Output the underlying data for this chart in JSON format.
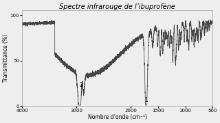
{
  "title": "Spectre infrarouge de l’ibuprofène",
  "xlabel": "Nombre d’onde (cm⁻¹)",
  "ylabel": "Transmittance (%)",
  "xlim": [
    4000,
    500
  ],
  "ylim": [
    0,
    105
  ],
  "yticks": [
    0,
    50,
    100
  ],
  "xticks": [
    4000,
    3000,
    2000,
    1500,
    1000,
    500
  ],
  "background": "#eeeeee",
  "line_color": "#444444",
  "title_fontsize": 7,
  "axis_fontsize": 5.5,
  "tick_fontsize": 5
}
